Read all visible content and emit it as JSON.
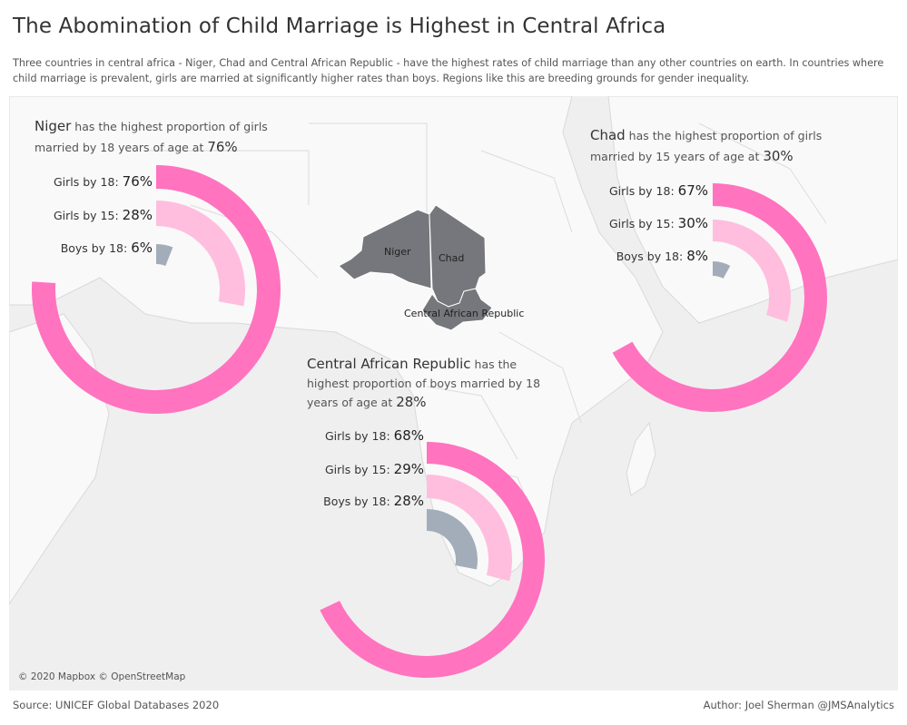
{
  "header": {
    "title": "The Abomination of Child Marriage is Highest in Central Africa",
    "subtitle": "Three countries in central africa - Niger, Chad and Central African Republic - have the highest rates of child marriage than any other countries on earth.  In countries where child marriage is prevalent, girls are married at significantly higher rates than boys.  Regions like this are breeding grounds for gender inequality."
  },
  "map": {
    "attribution": "© 2020 Mapbox © OpenStreetMap",
    "labels": {
      "niger": "Niger",
      "chad": "Chad",
      "car": "Central African Republic"
    }
  },
  "footer": {
    "source": "Source: UNICEF Global Databases 2020",
    "author": "Author: Joel Sherman @JMSAnalytics"
  },
  "colors": {
    "girls18": "#ff73bf",
    "girls15": "#ffbede",
    "boys18": "#a3adb9",
    "highlighted_country": "#76777c",
    "map_background": "#efefef"
  },
  "callouts": {
    "niger": {
      "name": "Niger",
      "text1": " has the highest proportion of girls",
      "text2": "married by 18 years of age at ",
      "pct": "76%"
    },
    "chad": {
      "name": "Chad",
      "text1": " has the highest proportion of girls",
      "text2": "married by 15 years of age at ",
      "pct": "30%"
    },
    "car": {
      "name": "Central African Republic",
      "text1": " has the",
      "text2": "highest proportion of boys married by 18",
      "text3": "years of age at ",
      "pct": "28%"
    }
  },
  "chart_data": [
    {
      "type": "radial-bar",
      "country": "Niger",
      "categories": [
        "Girls by 18:",
        "Girls by 15:",
        "Boys by 18:"
      ],
      "values": [
        76,
        28,
        6
      ],
      "value_labels": [
        "76%",
        "28%",
        "6%"
      ],
      "unit": "%",
      "max": 100
    },
    {
      "type": "radial-bar",
      "country": "Chad",
      "categories": [
        "Girls by 18:",
        "Girls by 15:",
        "Boys by 18:"
      ],
      "values": [
        67,
        30,
        8
      ],
      "value_labels": [
        "67%",
        "30%",
        "8%"
      ],
      "unit": "%",
      "max": 100
    },
    {
      "type": "radial-bar",
      "country": "Central African Republic",
      "categories": [
        "Girls by 18:",
        "Girls by 15:",
        "Boys by 18:"
      ],
      "values": [
        68,
        29,
        28
      ],
      "value_labels": [
        "68%",
        "29%",
        "28%"
      ],
      "unit": "%",
      "max": 100
    }
  ]
}
